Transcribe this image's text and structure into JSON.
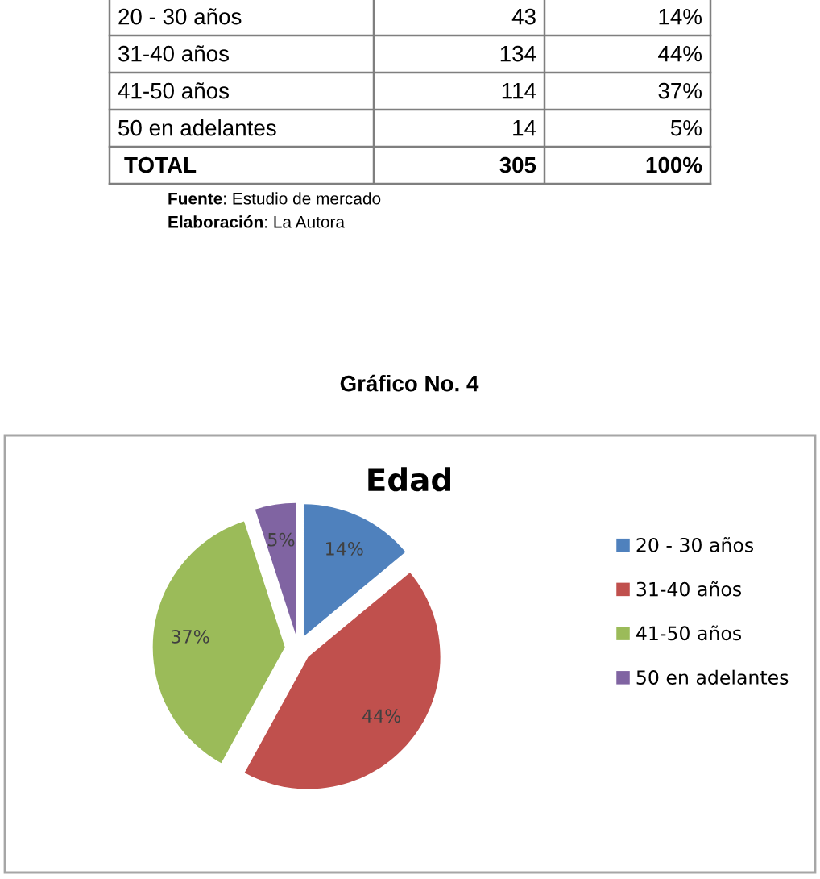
{
  "chart_data": [
    {
      "type": "other",
      "categories": [
        "20 - 30 años",
        "31-40 años",
        "41-50 años",
        "50 en adelantes",
        "TOTAL"
      ],
      "series": [
        {
          "values": [
            43,
            134,
            114,
            14,
            305
          ]
        },
        {
          "values": [
            14,
            44,
            37,
            5,
            100
          ],
          "value_labels": [
            "14%",
            "44%",
            "37%",
            "5%",
            "100%"
          ]
        }
      ],
      "data_labels": true,
      "annotations": [
        "Fuente: Estudio de mercado",
        "Elaboración: La Autora"
      ]
    },
    {
      "type": "pie",
      "title": "Gráfico No. 4",
      "subtitle": "Edad",
      "categories": [
        "20 - 30 años",
        "31-40 años",
        "41-50 años",
        "50 en adelantes"
      ],
      "values": [
        14,
        44,
        37,
        5
      ],
      "colors": [
        "#4f81bd",
        "#c0504d",
        "#9bbb59",
        "#8064a2"
      ],
      "value_labels": [
        "14%",
        "44%",
        "37%",
        "5%"
      ],
      "legend": "right"
    }
  ]
}
